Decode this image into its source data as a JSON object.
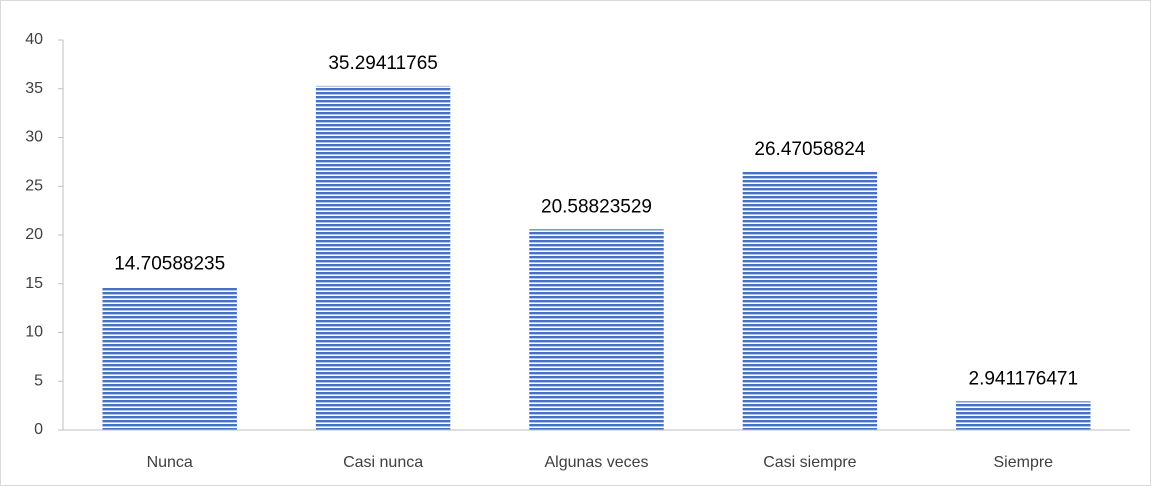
{
  "chart_data": {
    "type": "bar",
    "categories": [
      "Nunca",
      "Casi nunca",
      "Algunas veces",
      "Casi siempre",
      "Siempre"
    ],
    "values": [
      14.70588235,
      35.29411765,
      20.58823529,
      26.47058824,
      2.941176471
    ],
    "color": "#4472c4",
    "ylim": [
      0,
      40
    ],
    "yticks": [
      0,
      5,
      10,
      15,
      20,
      25,
      30,
      35,
      40
    ],
    "grid": false
  }
}
